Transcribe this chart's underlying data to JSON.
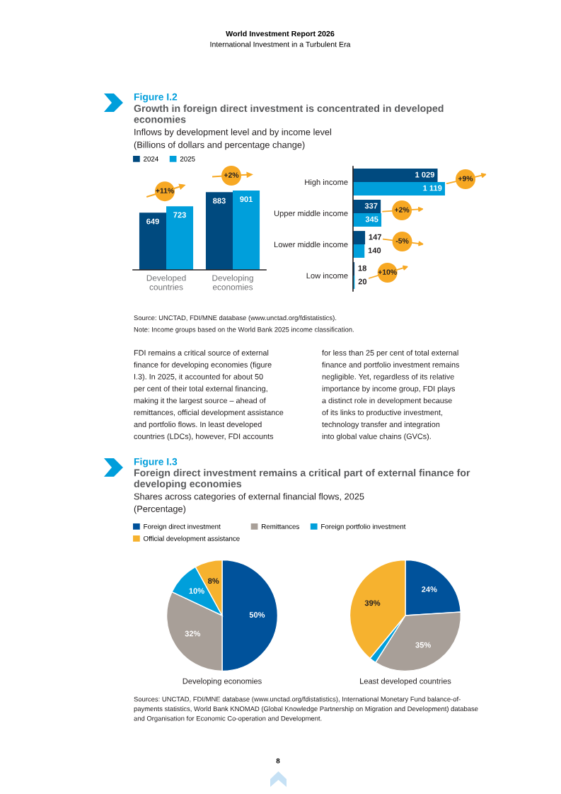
{
  "chart_data": [
    {
      "type": "other",
      "title": "World Investment Report 2026",
      "subtitle": "International Investment in a Turbulent Era",
      "annotations": [
        "8"
      ]
    },
    {
      "type": "bar",
      "title": "Figure I.2",
      "subtitle": "Growth in foreign direct investment is concentrated in developed\neconomies",
      "annotations": [
        "Inflows by development level and by income level",
        "(Billions of dollars and percentage change)",
        {
          "text": "+11%",
          "x": "Developed countries",
          "y": 723
        },
        {
          "text": "+2%",
          "x": "Developing economies",
          "y": 901
        }
      ],
      "categories": [
        "Developed countries",
        "Developing economies"
      ],
      "series": [
        {
          "name": "2024",
          "color": "#004a7f",
          "values": [
            649,
            883
          ],
          "value_labels": [
            "649",
            "883"
          ]
        },
        {
          "name": "2025",
          "color": "#009fdb",
          "values": [
            723,
            901
          ],
          "value_labels": [
            "723",
            "901"
          ]
        }
      ],
      "tick_labels": "x",
      "legend": "top left"
    },
    {
      "type": "bar",
      "orientation": "horizontal",
      "categories": [
        "High income",
        "Upper middle income",
        "Lower middle income",
        "Low income"
      ],
      "series": [
        {
          "color": "#004a7f",
          "values": [
            1029,
            337,
            147,
            18
          ],
          "value_labels": [
            "1 029",
            "337",
            "147",
            "18"
          ]
        },
        {
          "color": "#009fdb",
          "values": [
            1119,
            345,
            140,
            20
          ],
          "value_labels": [
            "1 119",
            "345",
            "140",
            "20"
          ]
        }
      ],
      "annotations": [
        "+9%",
        "+2%",
        "-5%",
        "+10%"
      ],
      "tick_labels": "y"
    },
    {
      "type": "other",
      "annotations": [
        "Source: UNCTAD, FDI/MNE database (www.unctad.org/fdistatistics).",
        "Note: Income groups based on the World Bank 2025 income classification."
      ]
    },
    {
      "type": "other",
      "annotations": [
        "FDI remains a critical source of external\nfinance for developing economies (figure\nI.3). In 2025, it accounted for about 50\nper cent of their total external financing,\nmaking it the largest source – ahead of\nremittances, official development assistance\nand portfolio flows. In least developed\ncountries (LDCs), however, FDI accounts",
        "for less than 25 per cent of total external\nfinance and portfolio investment remains\nnegligible. Yet, regardless of its relative\nimportance by income group, FDI plays\na distinct role in development because\nof its links to productive investment,\ntechnology transfer and integration\ninto global value chains (GVCs)."
      ]
    },
    {
      "type": "pie",
      "title": "Figure I.3",
      "subtitle": "Foreign direct investment remains a critical part of external finance for\ndeveloping economies",
      "annotations": [
        "Shares across categories of external financial flows, 2025",
        "(Percentage)"
      ],
      "categories": [
        "Foreign direct investment",
        "Remittances",
        "Foreign portfolio investment",
        "Official development assistance"
      ],
      "colors": [
        "#00529b",
        "#a89f98",
        "#009fdb",
        "#f6b22f"
      ],
      "series": [
        {
          "name": "Developing economies",
          "values": [
            50,
            32,
            10,
            8
          ],
          "value_labels": [
            "50%",
            "32%",
            "10%",
            "8%"
          ]
        },
        {
          "name": "Least developed countries",
          "values": [
            24,
            35,
            2,
            39
          ],
          "value_labels": [
            "24%",
            "35%",
            null,
            "39%"
          ]
        }
      ],
      "legend": "top left"
    },
    {
      "type": "other",
      "annotations": [
        "Sources: UNCTAD, FDI/MNE database (www.unctad.org/fdistatistics), International Monetary Fund balance-of-\npayments statistics, World Bank KNOMAD (Global Knowledge Partnership on Migration and Development) database\nand Organisation for Economic Co-operation and Development."
      ]
    }
  ]
}
